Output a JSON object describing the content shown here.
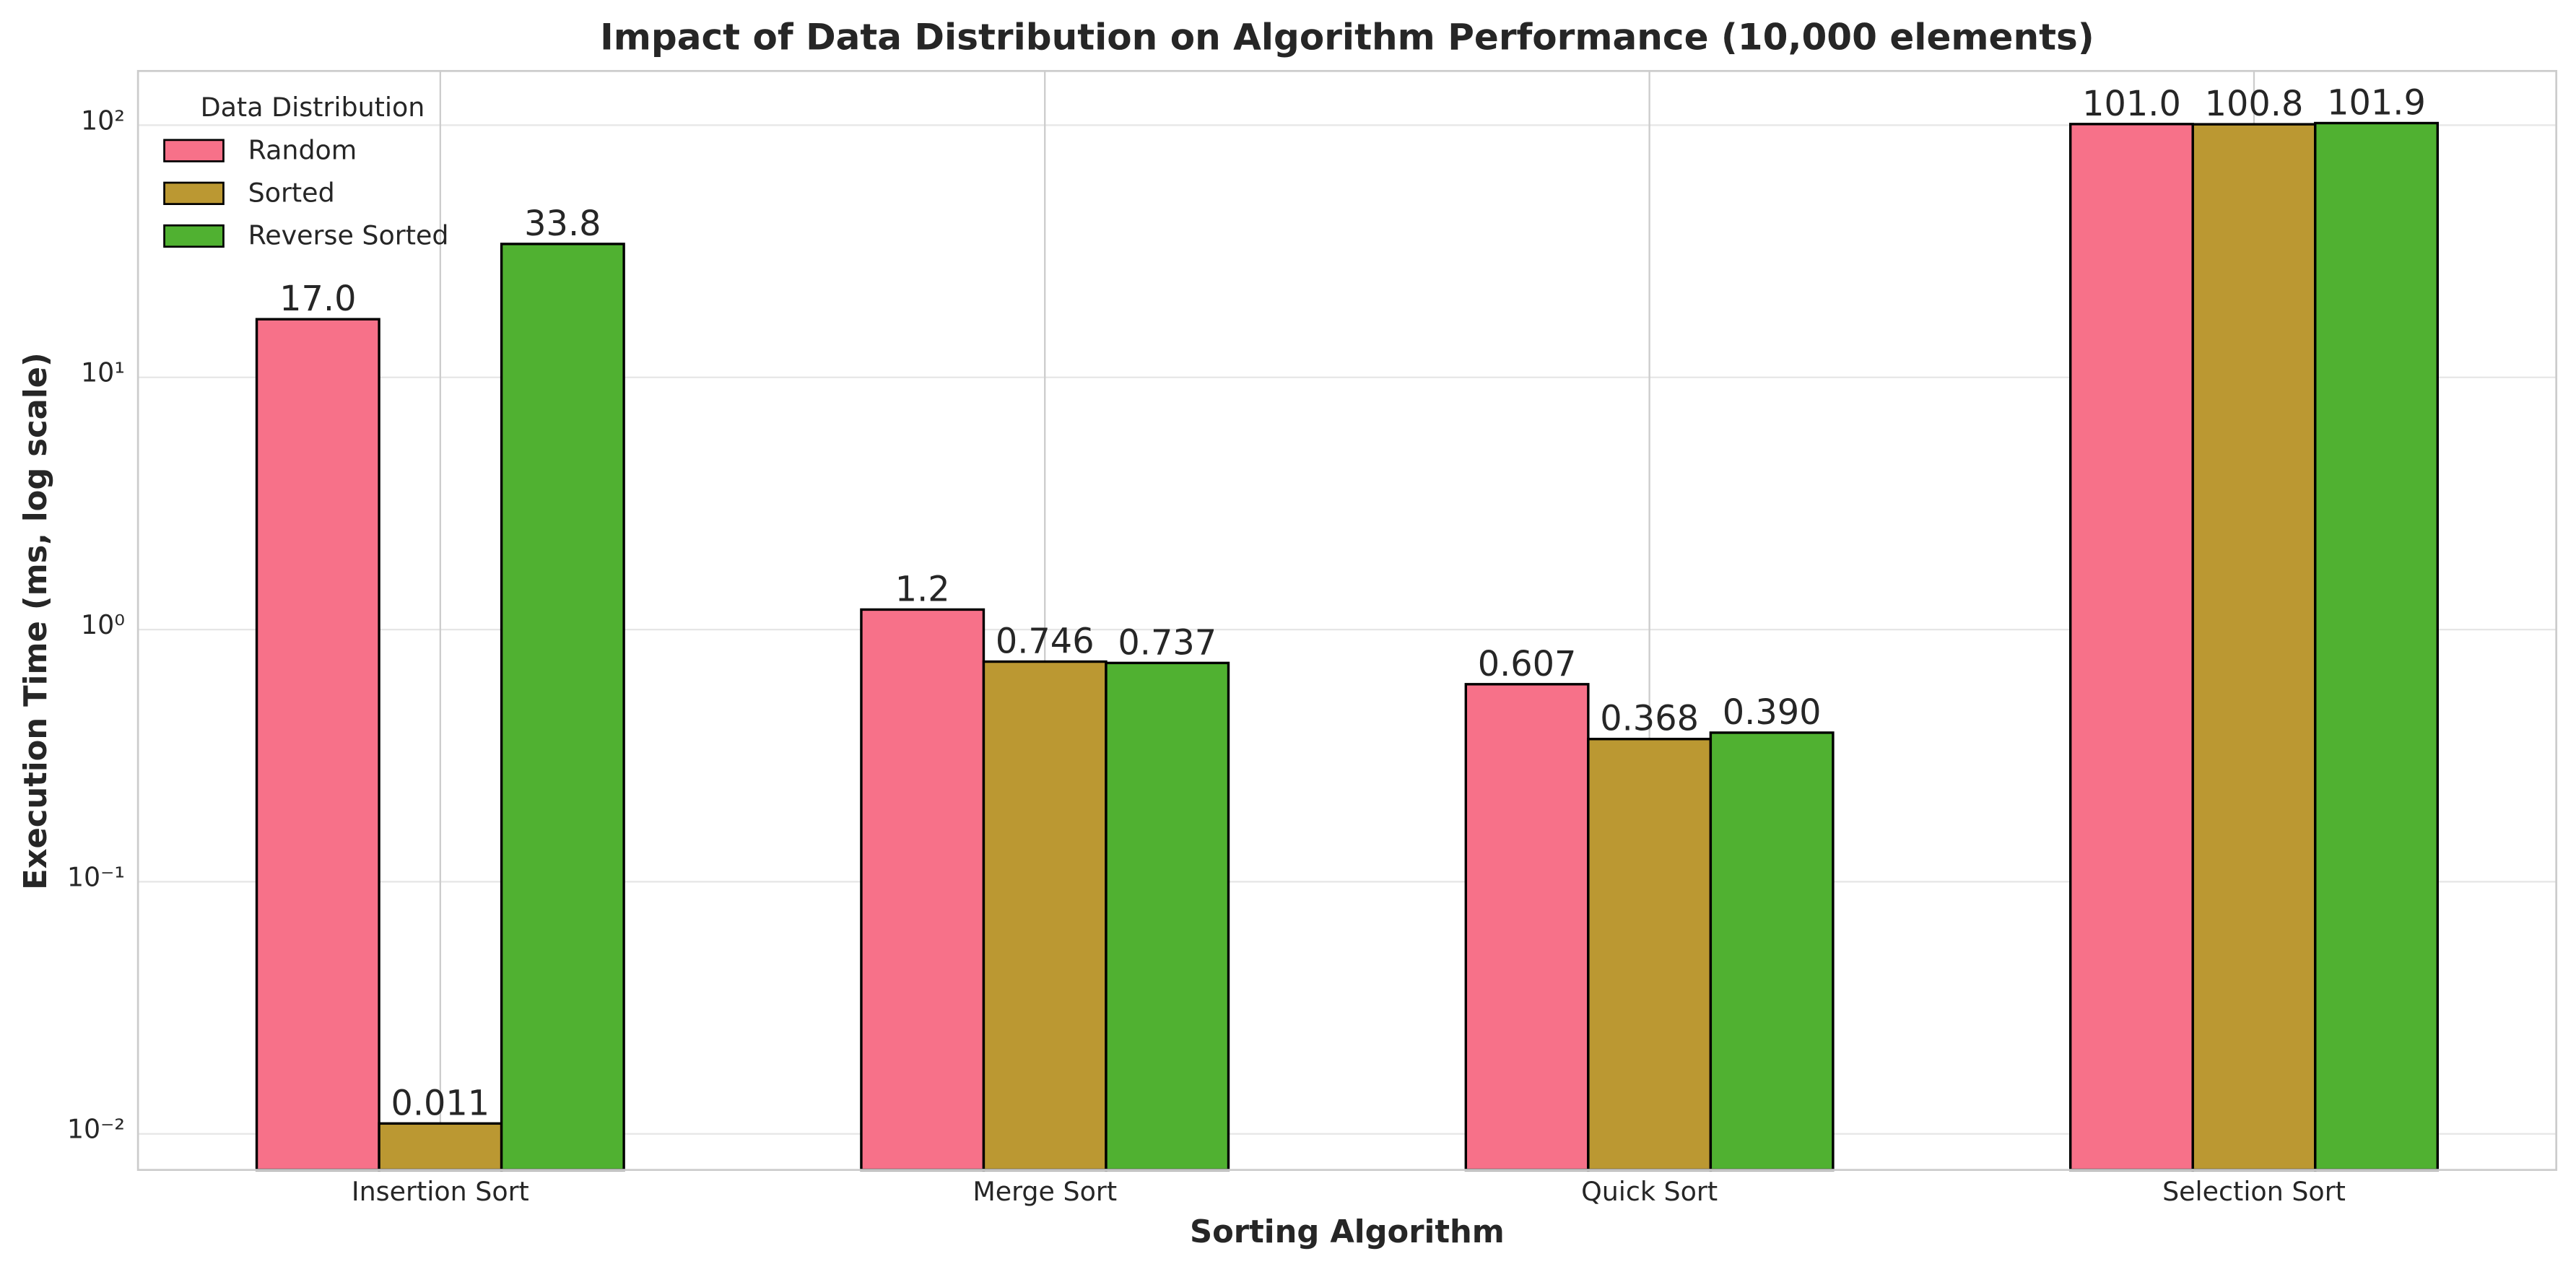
{
  "chart_data": {
    "type": "bar",
    "title": "Impact of Data Distribution on Algorithm Performance (10,000 elements)",
    "x_label": "Sorting Algorithm",
    "y_label": "Execution Time (ms, log scale)",
    "categories": [
      "Insertion Sort",
      "Merge Sort",
      "Quick Sort",
      "Selection Sort"
    ],
    "series": [
      {
        "name": "Random",
        "color": "#f77189",
        "values": [
          17.0,
          1.2,
          0.607,
          101.0
        ],
        "value_labels": [
          "17.0",
          "1.2",
          "0.607",
          "101.0"
        ]
      },
      {
        "name": "Sorted",
        "color": "#bb9832",
        "values": [
          0.011,
          0.746,
          0.368,
          100.8
        ],
        "value_labels": [
          "0.011",
          "0.746",
          "0.368",
          "100.8"
        ]
      },
      {
        "name": "Reverse Sorted",
        "color": "#50b131",
        "values": [
          33.8,
          0.737,
          0.39,
          101.9
        ],
        "value_labels": [
          "33.8",
          "0.737",
          "0.390",
          "101.9"
        ]
      }
    ],
    "legend_title": "Data Distribution",
    "legend_position": "upper left",
    "log_scale": true,
    "grid": true,
    "ylim": [
      0.0072,
      164
    ],
    "yticks": [
      {
        "value": 0.01,
        "label": "10⁻²"
      },
      {
        "value": 0.1,
        "label": "10⁻¹"
      },
      {
        "value": 1,
        "label": "10⁰"
      },
      {
        "value": 10,
        "label": "10¹"
      },
      {
        "value": 100,
        "label": "10²"
      }
    ]
  }
}
